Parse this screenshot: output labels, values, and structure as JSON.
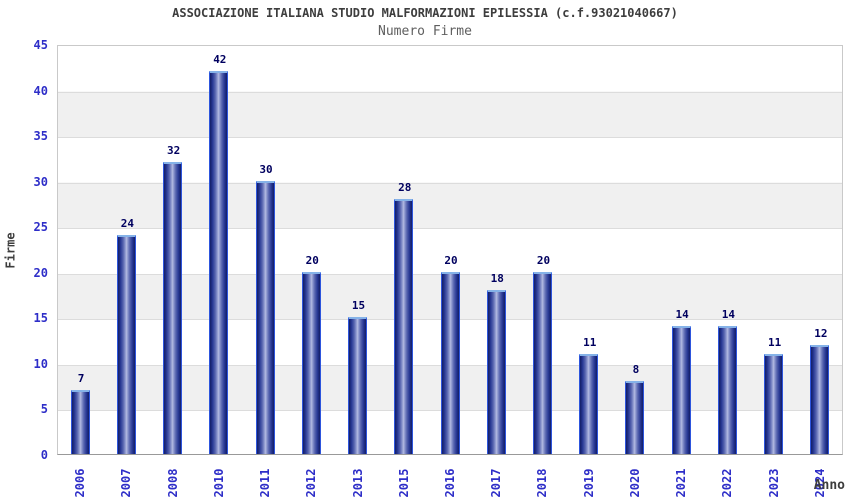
{
  "page": {
    "background": "#ffffff"
  },
  "chart_data": {
    "type": "bar",
    "title": "ASSOCIAZIONE ITALIANA STUDIO MALFORMAZIONI EPILESSIA (c.f.93021040667)",
    "subtitle": "Numero Firme",
    "xlabel": "Anno",
    "ylabel": "Firme",
    "categories": [
      "2006",
      "2007",
      "2008",
      "2010",
      "2011",
      "2012",
      "2013",
      "2015",
      "2016",
      "2017",
      "2018",
      "2019",
      "2020",
      "2021",
      "2022",
      "2023",
      "2024"
    ],
    "values": [
      7,
      24,
      32,
      42,
      30,
      20,
      15,
      28,
      20,
      18,
      20,
      11,
      8,
      14,
      14,
      11,
      12
    ],
    "ylim": [
      0,
      45
    ],
    "ytick_step": 5,
    "yticks": [
      0,
      5,
      10,
      15,
      20,
      25,
      30,
      35,
      40,
      45
    ],
    "grid": "horizontal-bands-alternating",
    "legend_position": "none",
    "bar_labels_shown": true,
    "colors": {
      "band_gray": "#f0f0f0",
      "gridline": "#dcdcdc",
      "plot_border": "#c9c9c9",
      "axis_line": "#999999",
      "bar_edge": "#2d55dd",
      "bar_top_edge": "#85b2e8",
      "bar_dark": "#141f66",
      "bar_light": "#b4bce2",
      "tick_label_blue": "#2e2ec8",
      "value_label_navy": "#00005f",
      "title_gray": "#3d3d3d",
      "subtitle_gray": "#5f5f5f"
    }
  }
}
